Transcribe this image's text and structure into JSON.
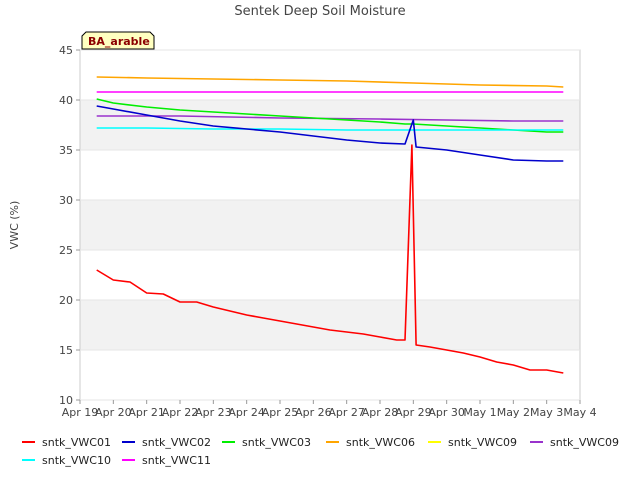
{
  "chart_data": {
    "type": "line",
    "title": "Sentek Deep Soil Moisture",
    "site_label": "BA_arable",
    "xlabel": "",
    "ylabel": "VWC (%)",
    "ylim": [
      10,
      45
    ],
    "yticks": [
      10,
      15,
      20,
      25,
      30,
      35,
      40,
      45
    ],
    "xlim": [
      "2024-04-19",
      "2024-05-04"
    ],
    "xticks": [
      "Apr 19",
      "Apr 20",
      "Apr 21",
      "Apr 22",
      "Apr 23",
      "Apr 24",
      "Apr 25",
      "Apr 26",
      "Apr 27",
      "Apr 28",
      "Apr 29",
      "Apr 30",
      "May 1",
      "May 2",
      "May 3",
      "May 4"
    ],
    "grid": "horizontal alternating bands",
    "legend_position": "bottom",
    "series": [
      {
        "name": "sntk_VWC01",
        "color": "#ff0000",
        "x": [
          "2024-04-19 12:00",
          "2024-04-20 00:00",
          "2024-04-20 12:00",
          "2024-04-21 00:00",
          "2024-04-21 12:00",
          "2024-04-22 00:00",
          "2024-04-22 12:00",
          "2024-04-23 00:00",
          "2024-04-23 12:00",
          "2024-04-24 00:00",
          "2024-04-24 12:00",
          "2024-04-25 00:00",
          "2024-04-25 12:00",
          "2024-04-26 00:00",
          "2024-04-26 12:00",
          "2024-04-27 00:00",
          "2024-04-27 12:00",
          "2024-04-28 00:00",
          "2024-04-28 12:00",
          "2024-04-28 18:00",
          "2024-04-28 23:00",
          "2024-04-29 02:00",
          "2024-04-29 12:00",
          "2024-04-30 00:00",
          "2024-04-30 12:00",
          "2024-05-01 00:00",
          "2024-05-01 12:00",
          "2024-05-02 00:00",
          "2024-05-02 12:00",
          "2024-05-03 00:00",
          "2024-05-03 12:00"
        ],
        "values": [
          23.0,
          22.0,
          21.8,
          20.7,
          20.6,
          19.8,
          19.8,
          19.3,
          18.9,
          18.5,
          18.2,
          17.9,
          17.6,
          17.3,
          17.0,
          16.8,
          16.6,
          16.3,
          16.0,
          16.0,
          35.5,
          15.5,
          15.3,
          15.0,
          14.7,
          14.3,
          13.8,
          13.5,
          13.0,
          13.0,
          12.7
        ]
      },
      {
        "name": "sntk_VWC02",
        "color": "#0000cc",
        "x": [
          "2024-04-19 12:00",
          "2024-04-20 00:00",
          "2024-04-21 00:00",
          "2024-04-22 00:00",
          "2024-04-23 00:00",
          "2024-04-24 00:00",
          "2024-04-25 00:00",
          "2024-04-26 00:00",
          "2024-04-27 00:00",
          "2024-04-28 00:00",
          "2024-04-28 18:00",
          "2024-04-29 00:00",
          "2024-04-29 02:00",
          "2024-04-30 00:00",
          "2024-05-01 00:00",
          "2024-05-02 00:00",
          "2024-05-03 00:00",
          "2024-05-03 12:00"
        ],
        "values": [
          39.4,
          39.1,
          38.5,
          37.9,
          37.4,
          37.1,
          36.8,
          36.4,
          36.0,
          35.7,
          35.6,
          38.0,
          35.3,
          35.0,
          34.5,
          34.0,
          33.9,
          33.9
        ]
      },
      {
        "name": "sntk_VWC03",
        "color": "#00ee00",
        "x": [
          "2024-04-19 12:00",
          "2024-04-20 00:00",
          "2024-04-21 00:00",
          "2024-04-22 00:00",
          "2024-04-23 00:00",
          "2024-04-24 00:00",
          "2024-04-25 00:00",
          "2024-04-26 00:00",
          "2024-04-27 00:00",
          "2024-04-28 00:00",
          "2024-04-28 18:00",
          "2024-04-29 00:00",
          "2024-04-30 00:00",
          "2024-05-01 00:00",
          "2024-05-02 00:00",
          "2024-05-03 00:00",
          "2024-05-03 12:00"
        ],
        "values": [
          40.1,
          39.7,
          39.3,
          39.0,
          38.8,
          38.6,
          38.4,
          38.2,
          38.0,
          37.8,
          37.6,
          37.6,
          37.4,
          37.2,
          37.0,
          36.8,
          36.8
        ]
      },
      {
        "name": "sntk_VWC06",
        "color": "#ffa500",
        "x": [
          "2024-04-19 12:00",
          "2024-04-21 00:00",
          "2024-04-23 00:00",
          "2024-04-25 00:00",
          "2024-04-27 00:00",
          "2024-04-29 00:00",
          "2024-05-01 00:00",
          "2024-05-03 00:00",
          "2024-05-03 12:00"
        ],
        "values": [
          42.3,
          42.2,
          42.1,
          42.0,
          41.9,
          41.7,
          41.5,
          41.4,
          41.3
        ]
      },
      {
        "name": "sntk_VWC09",
        "color": "#ffff00",
        "x": [],
        "values": []
      },
      {
        "name": "sntk_VWC09",
        "color": "#9932cc",
        "x": [
          "2024-04-19 12:00",
          "2024-04-22 00:00",
          "2024-04-25 00:00",
          "2024-04-28 00:00",
          "2024-04-30 00:00",
          "2024-05-02 00:00",
          "2024-05-03 12:00"
        ],
        "values": [
          38.4,
          38.4,
          38.2,
          38.1,
          38.0,
          37.9,
          37.9
        ]
      },
      {
        "name": "sntk_VWC10",
        "color": "#00ffff",
        "x": [
          "2024-04-19 12:00",
          "2024-04-21 00:00",
          "2024-04-23 00:00",
          "2024-04-25 00:00",
          "2024-04-27 00:00",
          "2024-04-29 00:00",
          "2024-05-01 00:00",
          "2024-05-03 12:00"
        ],
        "values": [
          37.2,
          37.2,
          37.1,
          37.1,
          37.0,
          37.0,
          37.0,
          37.0
        ]
      },
      {
        "name": "sntk_VWC11",
        "color": "#ff00ff",
        "x": [
          "2024-04-19 12:00",
          "2024-04-22 00:00",
          "2024-04-25 00:00",
          "2024-04-28 00:00",
          "2024-05-01 00:00",
          "2024-05-03 12:00"
        ],
        "values": [
          40.8,
          40.8,
          40.8,
          40.8,
          40.8,
          40.8
        ]
      }
    ]
  }
}
